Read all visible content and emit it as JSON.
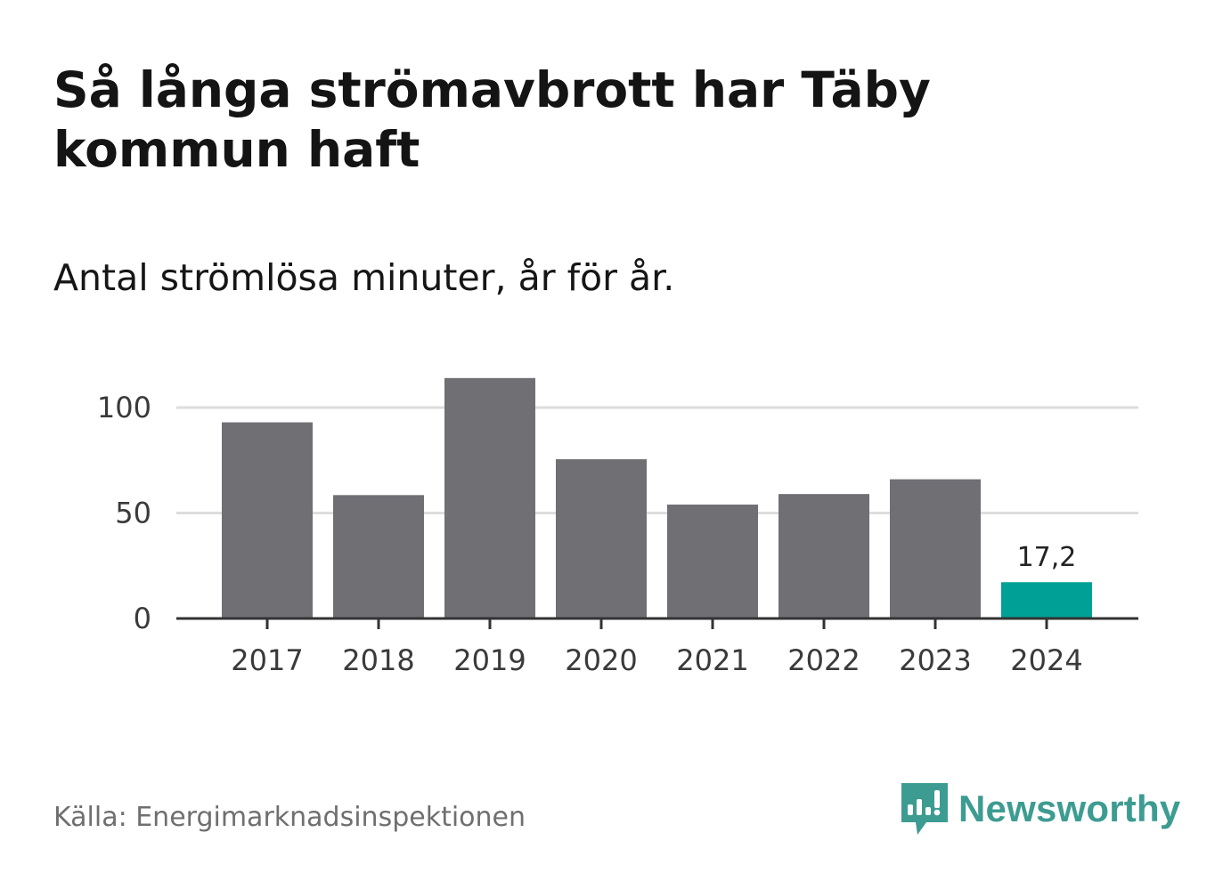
{
  "header": {
    "title": "Så långa strömavbrott har Täby kommun haft",
    "subtitle": "Antal strömlösa minuter, år för år."
  },
  "footer": {
    "source": "Källa: Energimarknadsinspektionen",
    "brand": "Newsworthy",
    "brand_icon": "bar-chart-speech-bubble-icon"
  },
  "colors": {
    "bar_default": "#706f74",
    "bar_highlight": "#00a096",
    "gridline": "#dddddd",
    "axis": "#333333",
    "brand": "#3d9c91"
  },
  "chart_data": {
    "type": "bar",
    "title": "Så långa strömavbrott har Täby kommun haft",
    "subtitle": "Antal strömlösa minuter, år för år.",
    "xlabel": "",
    "ylabel": "",
    "categories": [
      "2017",
      "2018",
      "2019",
      "2020",
      "2021",
      "2022",
      "2023",
      "2024"
    ],
    "values": [
      93,
      58.5,
      114,
      75.5,
      54,
      59,
      66,
      17.2
    ],
    "highlight_index": 7,
    "data_labels": [
      {
        "index": 7,
        "text": "17,2"
      }
    ],
    "ylim": [
      0,
      105
    ],
    "yticks": [
      0,
      50,
      100
    ],
    "ytick_labels": [
      "0",
      "50",
      "100"
    ],
    "grid": true
  }
}
